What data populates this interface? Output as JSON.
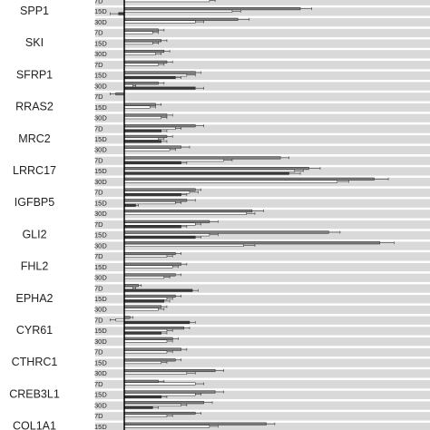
{
  "chart_data": {
    "type": "bar",
    "orientation": "horizontal",
    "grid": false,
    "legend": "none",
    "timepoints": [
      "7D",
      "15D",
      "30D"
    ],
    "series_colors": [
      "#7f7f7f",
      "#ffffff",
      "#3a3a3a"
    ],
    "band_color": "#d9d9d9",
    "xlim": [
      0,
      100
    ],
    "genes": [
      {
        "name": "SPP1",
        "rows": [
          [
            [
              55,
              3
            ],
            [
              30,
              2
            ],
            [
              0,
              0
            ]
          ],
          [
            [
              62,
              4
            ],
            [
              38,
              3
            ],
            [
              -2,
              3
            ]
          ],
          [
            [
              40,
              4
            ],
            [
              25,
              3
            ],
            [
              0,
              0
            ]
          ]
        ]
      },
      {
        "name": "SKI",
        "rows": [
          [
            [
              12,
              2
            ],
            [
              10,
              2
            ],
            [
              0,
              0
            ]
          ],
          [
            [
              13,
              2
            ],
            [
              10,
              2
            ],
            [
              0,
              0
            ]
          ],
          [
            [
              14,
              2
            ],
            [
              11,
              2
            ],
            [
              0,
              0
            ]
          ]
        ]
      },
      {
        "name": "SFRP1",
        "rows": [
          [
            [
              15,
              2
            ],
            [
              12,
              2
            ],
            [
              0,
              0
            ]
          ],
          [
            [
              25,
              2
            ],
            [
              22,
              3
            ],
            [
              18,
              2
            ]
          ],
          [
            [
              12,
              2
            ],
            [
              3,
              1
            ],
            [
              25,
              3
            ]
          ]
        ]
      },
      {
        "name": "RRAS2",
        "rows": [
          [
            [
              -3,
              2
            ],
            [
              0,
              0
            ],
            [
              0,
              0
            ]
          ],
          [
            [
              11,
              2
            ],
            [
              9,
              2
            ],
            [
              0,
              0
            ]
          ],
          [
            [
              15,
              2
            ],
            [
              13,
              2
            ],
            [
              0,
              0
            ]
          ]
        ]
      },
      {
        "name": "MRC2",
        "rows": [
          [
            [
              25,
              3
            ],
            [
              18,
              2
            ],
            [
              13,
              2
            ]
          ],
          [
            [
              15,
              2
            ],
            [
              12,
              2
            ],
            [
              13,
              2
            ]
          ],
          [
            [
              20,
              3
            ],
            [
              16,
              2
            ],
            [
              0,
              0
            ]
          ]
        ]
      },
      {
        "name": "LRRC17",
        "rows": [
          [
            [
              55,
              3
            ],
            [
              35,
              3
            ],
            [
              20,
              2
            ]
          ],
          [
            [
              65,
              4
            ],
            [
              60,
              3
            ],
            [
              58,
              4
            ]
          ],
          [
            [
              88,
              5
            ],
            [
              75,
              4
            ],
            [
              0,
              0
            ]
          ]
        ]
      },
      {
        "name": "IGFBP5",
        "rows": [
          [
            [
              25,
              2
            ],
            [
              23,
              3
            ],
            [
              20,
              2
            ]
          ],
          [
            [
              22,
              3
            ],
            [
              18,
              2
            ],
            [
              4,
              1
            ]
          ],
          [
            [
              45,
              4
            ],
            [
              43,
              3
            ],
            [
              0,
              0
            ]
          ]
        ]
      },
      {
        "name": "GLI2",
        "rows": [
          [
            [
              30,
              3
            ],
            [
              25,
              2
            ],
            [
              20,
              2
            ]
          ],
          [
            [
              72,
              4
            ],
            [
              30,
              3
            ],
            [
              25,
              2
            ]
          ],
          [
            [
              90,
              5
            ],
            [
              42,
              4
            ],
            [
              0,
              0
            ]
          ]
        ]
      },
      {
        "name": "FHL2",
        "rows": [
          [
            [
              18,
              2
            ],
            [
              15,
              2
            ],
            [
              0,
              0
            ]
          ],
          [
            [
              20,
              2
            ],
            [
              17,
              2
            ],
            [
              0,
              0
            ]
          ],
          [
            [
              18,
              2
            ],
            [
              14,
              2
            ],
            [
              0,
              0
            ]
          ]
        ]
      },
      {
        "name": "EPHA2",
        "rows": [
          [
            [
              5,
              1
            ],
            [
              3,
              1
            ],
            [
              24,
              2
            ]
          ],
          [
            [
              18,
              2
            ],
            [
              15,
              2
            ],
            [
              14,
              2
            ]
          ],
          [
            [
              13,
              2
            ],
            [
              12,
              2
            ],
            [
              0,
              0
            ]
          ]
        ]
      },
      {
        "name": "CYR61",
        "rows": [
          [
            [
              2,
              1
            ],
            [
              -3,
              2
            ],
            [
              23,
              2
            ]
          ],
          [
            [
              21,
              2
            ],
            [
              15,
              2
            ],
            [
              13,
              2
            ]
          ],
          [
            [
              17,
              2
            ],
            [
              15,
              2
            ],
            [
              0,
              0
            ]
          ]
        ]
      },
      {
        "name": "CTHRC1",
        "rows": [
          [
            [
              20,
              2
            ],
            [
              15,
              2
            ],
            [
              0,
              0
            ]
          ],
          [
            [
              18,
              2
            ],
            [
              13,
              2
            ],
            [
              0,
              0
            ]
          ],
          [
            [
              32,
              3
            ],
            [
              22,
              3
            ],
            [
              0,
              0
            ]
          ]
        ]
      },
      {
        "name": "CREB3L1",
        "rows": [
          [
            [
              12,
              2
            ],
            [
              25,
              3
            ],
            [
              0,
              0
            ]
          ],
          [
            [
              32,
              3
            ],
            [
              25,
              2
            ],
            [
              13,
              2
            ]
          ],
          [
            [
              28,
              3
            ],
            [
              20,
              2
            ],
            [
              10,
              2
            ]
          ]
        ]
      },
      {
        "name": "COL1A1",
        "rows": [
          [
            [
              25,
              2
            ],
            [
              15,
              2
            ],
            [
              0,
              0
            ]
          ],
          [
            [
              50,
              3
            ],
            [
              30,
              3
            ],
            [
              0,
              0
            ]
          ],
          [
            [
              0,
              0
            ],
            [
              0,
              0
            ],
            [
              0,
              0
            ]
          ]
        ]
      }
    ]
  }
}
